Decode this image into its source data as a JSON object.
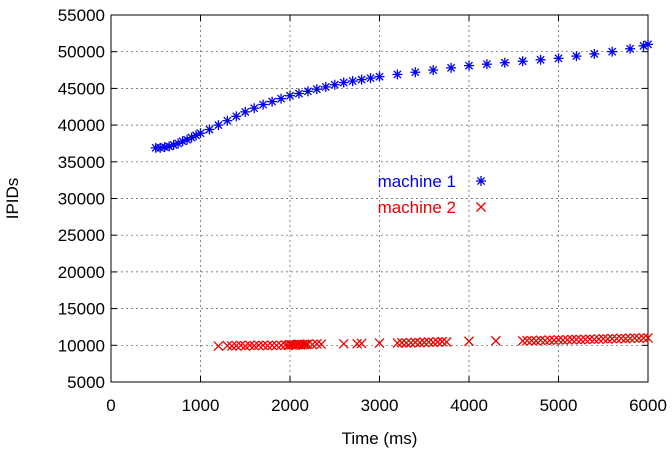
{
  "chart_data": {
    "type": "scatter",
    "xlabel": "Time (ms)",
    "ylabel": "IPIDs",
    "xlim": [
      0,
      6000
    ],
    "ylim": [
      5000,
      55000
    ],
    "xticks": [
      0,
      1000,
      2000,
      3000,
      4000,
      5000,
      6000
    ],
    "yticks": [
      5000,
      10000,
      15000,
      20000,
      25000,
      30000,
      35000,
      40000,
      45000,
      50000,
      55000
    ],
    "grid": true,
    "legend_position": "center",
    "series": [
      {
        "name": "machine 1",
        "marker": "asterisk",
        "color": "#0000ee",
        "x": [
          500,
          550,
          600,
          650,
          700,
          750,
          800,
          850,
          900,
          950,
          1000,
          1100,
          1200,
          1300,
          1400,
          1500,
          1600,
          1700,
          1800,
          1900,
          2000,
          2100,
          2200,
          2300,
          2400,
          2500,
          2600,
          2700,
          2800,
          2900,
          3000,
          3200,
          3400,
          3600,
          3800,
          4000,
          4200,
          4400,
          4600,
          4800,
          5000,
          5200,
          5400,
          5600,
          5800,
          5950,
          6000
        ],
        "y": [
          36900,
          36900,
          37000,
          37100,
          37300,
          37500,
          37800,
          38000,
          38300,
          38600,
          38900,
          39400,
          40000,
          40600,
          41200,
          41800,
          42300,
          42800,
          43200,
          43600,
          44000,
          44300,
          44600,
          44900,
          45200,
          45500,
          45800,
          46000,
          46200,
          46400,
          46600,
          46900,
          47200,
          47500,
          47800,
          48100,
          48300,
          48500,
          48700,
          48900,
          49100,
          49400,
          49700,
          50000,
          50400,
          50800,
          51000
        ]
      },
      {
        "name": "machine 2",
        "marker": "cross",
        "color": "#ee0000",
        "x": [
          1200,
          1300,
          1350,
          1400,
          1450,
          1500,
          1550,
          1600,
          1650,
          1700,
          1750,
          1800,
          1850,
          1900,
          1950,
          1980,
          2000,
          2020,
          2040,
          2060,
          2080,
          2100,
          2120,
          2140,
          2160,
          2180,
          2200,
          2250,
          2300,
          2350,
          2600,
          2750,
          2800,
          3000,
          3200,
          3250,
          3300,
          3350,
          3400,
          3450,
          3500,
          3550,
          3600,
          3650,
          3700,
          3750,
          4000,
          4300,
          4600,
          4650,
          4700,
          4750,
          4800,
          4850,
          4900,
          4950,
          5000,
          5050,
          5100,
          5150,
          5200,
          5250,
          5300,
          5350,
          5400,
          5450,
          5500,
          5550,
          5600,
          5650,
          5700,
          5750,
          5800,
          5850,
          5900,
          5950,
          6000
        ],
        "y": [
          9900,
          9950,
          9900,
          9950,
          10000,
          9900,
          10000,
          9950,
          10000,
          10000,
          9950,
          10000,
          10000,
          10000,
          10050,
          10000,
          10100,
          10050,
          10100,
          10000,
          10100,
          10150,
          10050,
          10100,
          10150,
          10100,
          10150,
          10100,
          10200,
          10150,
          10200,
          10200,
          10250,
          10300,
          10300,
          10350,
          10300,
          10350,
          10400,
          10350,
          10400,
          10450,
          10400,
          10450,
          10500,
          10450,
          10550,
          10600,
          10600,
          10650,
          10650,
          10600,
          10700,
          10650,
          10700,
          10700,
          10750,
          10700,
          10750,
          10800,
          10800,
          10750,
          10800,
          10850,
          10800,
          10850,
          10900,
          10850,
          10900,
          10900,
          10950,
          10900,
          10950,
          11000,
          10950,
          11000,
          11000
        ]
      }
    ]
  }
}
